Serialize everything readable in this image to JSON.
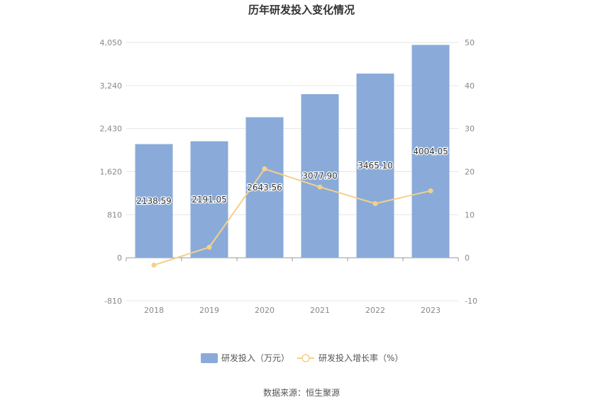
{
  "chart_data": {
    "type": "bar",
    "title": "历年研发投入变化情况",
    "categories": [
      "2018",
      "2019",
      "2020",
      "2021",
      "2022",
      "2023"
    ],
    "series": [
      {
        "name": "研发投入（万元）",
        "type": "bar",
        "axis": "left",
        "values": [
          2138.59,
          2191.05,
          2643.56,
          3077.9,
          3465.1,
          4004.05
        ],
        "labels": [
          "2138.59",
          "2191.05",
          "2643.56",
          "3077.90",
          "3465.10",
          "4004.05"
        ],
        "color": "#8aabd9"
      },
      {
        "name": "研发投入增长率（%）",
        "type": "line",
        "axis": "right",
        "values": [
          -1.7,
          2.45,
          20.65,
          16.43,
          12.58,
          15.55
        ],
        "color": "#f5d08a"
      }
    ],
    "y_left": {
      "ylim": [
        -810,
        4050
      ],
      "ticks": [
        -810,
        0,
        810,
        1620,
        2430,
        3240,
        4050
      ],
      "tick_labels": [
        "-810",
        "0",
        "810",
        "1,620",
        "2,430",
        "3,240",
        "4,050"
      ]
    },
    "y_right": {
      "ylim": [
        -10,
        50
      ],
      "ticks": [
        -10,
        0,
        10,
        20,
        30,
        40,
        50
      ],
      "tick_labels": [
        "-10",
        "0",
        "10",
        "20",
        "30",
        "40",
        "50"
      ]
    },
    "grid": true,
    "legend": "bottom-center"
  },
  "source": "数据来源：恒生聚源"
}
